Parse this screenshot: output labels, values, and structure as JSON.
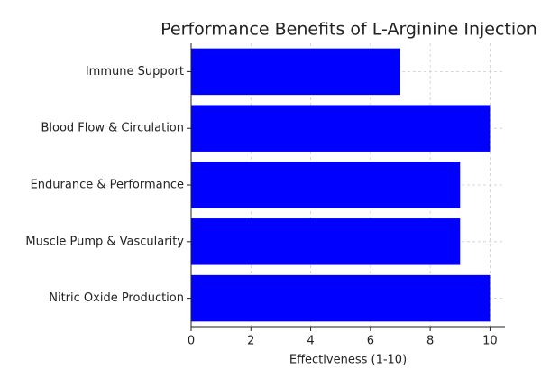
{
  "chart_data": {
    "type": "barh",
    "title": "Performance Benefits of L-Arginine Injection",
    "xlabel": "Effectiveness (1-10)",
    "categories": [
      "Nitric Oxide Production",
      "Muscle Pump & Vascularity",
      "Endurance & Performance",
      "Blood Flow & Circulation",
      "Immune Support"
    ],
    "values": [
      10,
      9,
      9,
      10,
      7
    ],
    "color": "#0000ff",
    "xlim": [
      0,
      10.5
    ],
    "xticks": [
      0,
      2,
      4,
      6,
      8,
      10
    ],
    "grid": true
  }
}
